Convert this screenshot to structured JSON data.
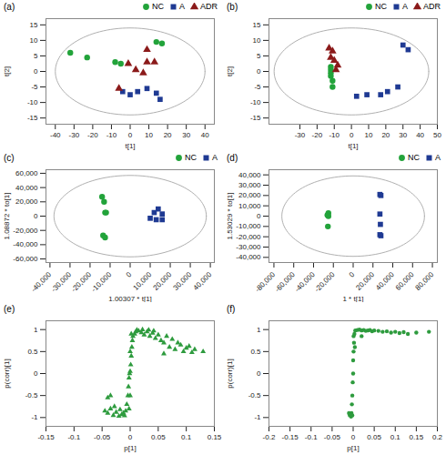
{
  "chart_data": [
    {
      "type": "scatter",
      "title": "(a)",
      "x_label": "t[1]",
      "y_label": "t[2]",
      "xlim": [
        -45,
        45
      ],
      "ylim": [
        -17,
        17
      ],
      "xticks": [
        -40,
        -30,
        -20,
        -10,
        0,
        10,
        20,
        30,
        40
      ],
      "yticks": [
        -15,
        -10,
        -5,
        0,
        5,
        10,
        15
      ],
      "ellipse": [
        40,
        14
      ],
      "legend": "top-right",
      "series": [
        {
          "name": "NC",
          "color": "#22a33a",
          "marker": "circle",
          "x": [
            -32,
            -23,
            -8,
            -5,
            14,
            17
          ],
          "y": [
            6,
            4.5,
            3,
            2.5,
            9.5,
            9
          ]
        },
        {
          "name": "A",
          "color": "#1f3a93",
          "marker": "square",
          "x": [
            -4,
            0,
            4,
            9,
            14,
            16
          ],
          "y": [
            -6.5,
            -7.5,
            -6.5,
            -5.5,
            -7,
            -9
          ]
        },
        {
          "name": "ADR",
          "color": "#8b1a1a",
          "marker": "triangle",
          "x": [
            -1,
            3,
            7,
            9,
            9,
            13,
            -6
          ],
          "y": [
            2.5,
            0.5,
            -0.5,
            7,
            3,
            3,
            -5.5
          ]
        }
      ]
    },
    {
      "type": "scatter",
      "title": "(b)",
      "x_label": "t[1]",
      "y_label": "t[2]",
      "xlim": [
        -48,
        50
      ],
      "ylim": [
        -17,
        17
      ],
      "xticks": [
        -30,
        -20,
        -10,
        0,
        10,
        20,
        30,
        40,
        50
      ],
      "yticks": [
        -15,
        -10,
        -5,
        0,
        5,
        10,
        15
      ],
      "ellipse": [
        45,
        14
      ],
      "legend": "top-right",
      "series": [
        {
          "name": "NC",
          "color": "#22a33a",
          "marker": "circle",
          "x": [
            -12,
            -12,
            -12,
            -12,
            -11,
            -11
          ],
          "y": [
            1.5,
            0.5,
            -0.5,
            -1.5,
            -3,
            -5
          ]
        },
        {
          "name": "A",
          "color": "#1f3a93",
          "marker": "square",
          "x": [
            30,
            33,
            3,
            9,
            17,
            27,
            21
          ],
          "y": [
            8.5,
            7,
            -8,
            -7.5,
            -7.5,
            -5,
            -6.5
          ]
        },
        {
          "name": "ADR",
          "color": "#8b1a1a",
          "marker": "triangle",
          "x": [
            -13,
            -11,
            -12,
            -10,
            -8,
            -9
          ],
          "y": [
            7.5,
            6.5,
            4.5,
            3.5,
            2,
            0.5
          ]
        }
      ]
    },
    {
      "type": "scatter",
      "title": "(c)",
      "x_label": "1.00307 * t[1]",
      "y_label": "1.08872 * to[1]",
      "xlim": [
        -42000,
        42000
      ],
      "ylim": [
        -65000,
        65000
      ],
      "xticks": [
        {
          "value": -40000,
          "label": "-40,000"
        },
        {
          "value": -30000,
          "label": "-30,000"
        },
        {
          "value": -20000,
          "label": "-20,000"
        },
        {
          "value": -10000,
          "label": "-10,000"
        },
        0,
        {
          "value": 10000,
          "label": "10,000"
        },
        {
          "value": 20000,
          "label": "20,000"
        },
        {
          "value": 30000,
          "label": "30,000"
        },
        {
          "value": 40000,
          "label": "40,000"
        }
      ],
      "yticks": [
        {
          "value": -60000,
          "label": "-60,000"
        },
        {
          "value": -40000,
          "label": "-40,000"
        },
        {
          "value": -20000,
          "label": "-20,000"
        },
        0,
        {
          "value": 20000,
          "label": "20,000"
        },
        {
          "value": 40000,
          "label": "40,000"
        },
        {
          "value": 60000,
          "label": "60,000"
        }
      ],
      "ellipse": [
        38000,
        57000
      ],
      "legend": "top-right",
      "series": [
        {
          "name": "NC",
          "color": "#22a33a",
          "marker": "circle",
          "x": [
            -14000,
            -13000,
            -12500,
            -12000,
            -13500,
            -12500
          ],
          "y": [
            27000,
            20000,
            5000,
            5000,
            -27000,
            -30000
          ]
        },
        {
          "name": "A",
          "color": "#1f3a93",
          "marker": "square",
          "x": [
            14000,
            12000,
            16000,
            10000,
            13000,
            16000
          ],
          "y": [
            10000,
            5000,
            3000,
            -3000,
            -5000,
            -5000
          ]
        }
      ]
    },
    {
      "type": "scatter",
      "title": "(d)",
      "x_label": "1 * t[1]",
      "y_label": "1.53029 * to[1]",
      "xlim": [
        -85000,
        85000
      ],
      "ylim": [
        -45000,
        45000
      ],
      "xticks": [
        {
          "value": -80000,
          "label": "-80,000"
        },
        {
          "value": -60000,
          "label": "-60,000"
        },
        {
          "value": -40000,
          "label": "-40,000"
        },
        {
          "value": -20000,
          "label": "-20,000"
        },
        0,
        {
          "value": 20000,
          "label": "20,000"
        },
        {
          "value": 40000,
          "label": "40,000"
        },
        {
          "value": 60000,
          "label": "60,000"
        },
        {
          "value": 80000,
          "label": "80,000"
        }
      ],
      "yticks": [
        {
          "value": -40000,
          "label": "-40,000"
        },
        {
          "value": -30000,
          "label": "-30,000"
        },
        {
          "value": -20000,
          "label": "-20,000"
        },
        {
          "value": -10000,
          "label": "-10,000"
        },
        0,
        {
          "value": 10000,
          "label": "10,000"
        },
        {
          "value": 20000,
          "label": "20,000"
        },
        {
          "value": 30000,
          "label": "30,000"
        },
        {
          "value": 40000,
          "label": "40,000"
        }
      ],
      "ellipse": [
        72000,
        39000
      ],
      "legend": "top-right",
      "series": [
        {
          "name": "NC",
          "color": "#22a33a",
          "marker": "circle",
          "x": [
            -25000,
            -26000,
            -25000,
            -25500
          ],
          "y": [
            3000,
            1000,
            0,
            -10000
          ]
        },
        {
          "name": "A",
          "color": "#1f3a93",
          "marker": "square",
          "x": [
            27000,
            28000,
            27000,
            27500,
            27000,
            28000
          ],
          "y": [
            21000,
            20000,
            2000,
            -8000,
            -18000,
            -19000
          ]
        }
      ]
    },
    {
      "type": "scatter",
      "title": "(e)",
      "x_label": "p[1]",
      "y_label": "p(corr)[1]",
      "xlim": [
        -0.15,
        0.15
      ],
      "ylim": [
        -1.2,
        1.2
      ],
      "xticks": [
        -0.15,
        -0.1,
        -0.05,
        0,
        0.05,
        0.1,
        0.15
      ],
      "yticks": [
        -1,
        -0.5,
        0,
        0.5,
        1
      ],
      "series": [
        {
          "color": "#2e9b3e",
          "marker": "triangle",
          "x": [
            -0.045,
            -0.04,
            -0.035,
            -0.03,
            -0.028,
            -0.025,
            -0.02,
            -0.018,
            -0.015,
            -0.012,
            -0.01,
            -0.008,
            -0.006,
            -0.004,
            -0.003,
            -0.002,
            -0.001,
            0,
            0.001,
            0.002,
            0.003,
            0.004,
            0.005,
            0.008,
            0.01,
            0.015,
            0.02,
            0.025,
            0.03,
            0.035,
            0.04,
            0.045,
            0.05,
            0.055,
            0.06,
            0.065,
            0.07,
            0.075,
            0.08,
            0.085,
            0.09,
            0.095,
            0.1,
            0.105,
            0.11,
            0.115,
            0.13,
            -0.04,
            -0.035,
            0.06,
            0,
            0,
            -0.002,
            0.002,
            0.012,
            0.022,
            0.033,
            0.042
          ],
          "y": [
            -0.85,
            -0.9,
            -0.8,
            -0.95,
            -0.75,
            -0.88,
            -0.97,
            -0.82,
            -0.93,
            -0.9,
            -0.96,
            -0.85,
            -0.7,
            -0.5,
            -0.3,
            -0.1,
            0,
            0.05,
            0.2,
            0.4,
            0.6,
            0.75,
            0.85,
            0.9,
            0.95,
            0.97,
            0.93,
            0.88,
            0.95,
            0.85,
            0.92,
            0.8,
            0.88,
            0.75,
            0.7,
            0.85,
            0.6,
            0.78,
            0.55,
            0.7,
            0.65,
            0.5,
            0.58,
            0.62,
            0.48,
            0.55,
            0.5,
            -0.55,
            -0.5,
            0.45,
            -0.5,
            0.5,
            -0.8,
            0.9,
            0.99,
            1,
            0.99,
            0.97
          ]
        }
      ]
    },
    {
      "type": "scatter",
      "title": "(f)",
      "x_label": "p[1]",
      "y_label": "p(corr)[1]",
      "xlim": [
        -0.2,
        0.2
      ],
      "ylim": [
        -1.2,
        1.2
      ],
      "xticks": [
        -0.2,
        -0.15,
        -0.1,
        -0.05,
        0,
        0.05,
        0.1,
        0.15,
        0.2
      ],
      "yticks": [
        -1,
        -0.5,
        0,
        0.5,
        1
      ],
      "series": [
        {
          "color": "#2e9b3e",
          "marker": "circle",
          "x": [
            -0.005,
            -0.004,
            -0.003,
            -0.002,
            -0.001,
            0,
            0,
            0.001,
            0.002,
            0.003,
            0.005,
            0.01,
            0.015,
            0.02,
            0.025,
            0.03,
            0.035,
            0.04,
            0.045,
            0.05,
            0.06,
            0.07,
            0.08,
            0.09,
            0.1,
            0.11,
            0.12,
            0.13,
            0.15,
            0.18,
            -0.008,
            -0.01,
            -0.002,
            0.001,
            0.004,
            0.02
          ],
          "y": [
            -0.98,
            -0.9,
            -0.7,
            -0.5,
            -0.2,
            0,
            0.3,
            0.5,
            0.7,
            0.9,
            0.98,
            0.99,
            1,
            0.98,
            0.99,
            0.97,
            0.98,
            0.99,
            0.96,
            0.98,
            0.97,
            0.95,
            0.96,
            0.93,
            0.95,
            0.92,
            0.94,
            0.9,
            0.93,
            0.95,
            -0.95,
            -0.9,
            -0.95,
            0.85,
            0.6,
            0.85
          ]
        }
      ]
    }
  ]
}
